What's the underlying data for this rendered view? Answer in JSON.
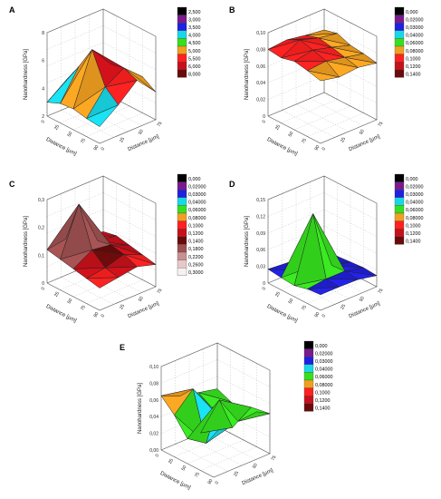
{
  "chart_data": [
    {
      "type": "surface",
      "panel": "A",
      "zlabel": "Nanohardness [GPa]",
      "xlabel": "Distance [µm]",
      "ylabel": "Distance [µm]",
      "zlim": [
        2,
        8
      ],
      "zticks": [
        "2",
        "4",
        "6",
        "8"
      ],
      "xticks": [
        "0",
        "25",
        "50",
        "75",
        "90"
      ],
      "yticks": [
        "0",
        "25",
        "50",
        "75"
      ],
      "legend": [
        {
          "label": "2,500",
          "color": "#000000"
        },
        {
          "label": "3,000",
          "color": "#7a1a8c"
        },
        {
          "label": "3,500",
          "color": "#2020e0"
        },
        {
          "label": "4,000",
          "color": "#18d8e8"
        },
        {
          "label": "4,500",
          "color": "#36e01e"
        },
        {
          "label": "5,000",
          "color": "#f0a020"
        },
        {
          "label": "5,500",
          "color": "#ff2020"
        },
        {
          "label": "6,000",
          "color": "#c8101a"
        },
        {
          "label": "8,000",
          "color": "#6a0a0a"
        }
      ],
      "z": [
        [
          3.0,
          3.4,
          3.5,
          3.3,
          3.2
        ],
        [
          4.0,
          5.5,
          7.2,
          5.0,
          4.2
        ],
        [
          3.5,
          4.5,
          5.6,
          5.8,
          5.4
        ],
        [
          3.2,
          3.8,
          4.4,
          4.6,
          4.0
        ]
      ]
    },
    {
      "type": "surface",
      "panel": "B",
      "zlabel": "Nanohardness [GPa]",
      "xlabel": "Distance [µm]",
      "ylabel": "Distance [µm]",
      "zlim": [
        0,
        0.1
      ],
      "zticks": [
        "0",
        "0,02",
        "0,04",
        "0,06",
        "0,08",
        "0,10"
      ],
      "xticks": [
        "0",
        "25",
        "50",
        "75",
        "90"
      ],
      "yticks": [
        "0",
        "25",
        "50",
        "75"
      ],
      "legend": [
        {
          "label": "0,000",
          "color": "#000000"
        },
        {
          "label": "0,02000",
          "color": "#7a1a8c"
        },
        {
          "label": "0,03000",
          "color": "#2020e0"
        },
        {
          "label": "0,04000",
          "color": "#18d8e8"
        },
        {
          "label": "0,06000",
          "color": "#36e01e"
        },
        {
          "label": "0,08000",
          "color": "#f0a020"
        },
        {
          "label": "0,1000",
          "color": "#ff2020"
        },
        {
          "label": "0,1200",
          "color": "#c8101a"
        },
        {
          "label": "0,1400",
          "color": "#6a0a0a"
        }
      ],
      "z": [
        [
          0.08,
          0.078,
          0.082,
          0.079,
          0.075
        ],
        [
          0.082,
          0.09,
          0.086,
          0.081,
          0.07
        ],
        [
          0.078,
          0.083,
          0.08,
          0.076,
          0.072
        ],
        [
          0.075,
          0.079,
          0.073,
          0.071,
          0.068
        ]
      ]
    },
    {
      "type": "surface",
      "panel": "C",
      "zlabel": "Nanohardness [GPa]",
      "xlabel": "Distance [µm]",
      "ylabel": "Distance [µm]",
      "zlim": [
        0,
        0.3
      ],
      "zticks": [
        "0",
        "0,1",
        "0,2",
        "0,3"
      ],
      "xticks": [
        "0",
        "25",
        "50",
        "75",
        "90"
      ],
      "yticks": [
        "0",
        "25",
        "50",
        "75"
      ],
      "legend": [
        {
          "label": "0,000",
          "color": "#000000"
        },
        {
          "label": "0,02000",
          "color": "#7a1a8c"
        },
        {
          "label": "0,03000",
          "color": "#2020e0"
        },
        {
          "label": "0,04000",
          "color": "#18d8e8"
        },
        {
          "label": "0,06000",
          "color": "#36e01e"
        },
        {
          "label": "0,08000",
          "color": "#f0a020"
        },
        {
          "label": "0,1000",
          "color": "#ff2020"
        },
        {
          "label": "0,1200",
          "color": "#c8101a"
        },
        {
          "label": "0,1400",
          "color": "#6a0a0a"
        },
        {
          "label": "0,1800",
          "color": "#a05050"
        },
        {
          "label": "0,2200",
          "color": "#c89090"
        },
        {
          "label": "0,2600",
          "color": "#e6c8c8"
        },
        {
          "label": "0,3000",
          "color": "#f6f0f0"
        }
      ],
      "z": [
        [
          0.12,
          0.11,
          0.1,
          0.09,
          0.08
        ],
        [
          0.13,
          0.28,
          0.14,
          0.1,
          0.09
        ],
        [
          0.11,
          0.12,
          0.13,
          0.12,
          0.1
        ],
        [
          0.1,
          0.11,
          0.1,
          0.09,
          0.08
        ]
      ]
    },
    {
      "type": "surface",
      "panel": "D",
      "zlabel": "Nanohardness [GPa]",
      "xlabel": "Distance [µm]",
      "ylabel": "Distance [µm]",
      "zlim": [
        0,
        0.15
      ],
      "zticks": [
        "0",
        "0,03",
        "0,06",
        "0,09",
        "0,12",
        "0,15"
      ],
      "xticks": [
        "0",
        "25",
        "50",
        "75",
        "90"
      ],
      "yticks": [
        "0",
        "25",
        "50",
        "75"
      ],
      "legend": [
        {
          "label": "0,000",
          "color": "#000000"
        },
        {
          "label": "0,02000",
          "color": "#7a1a8c"
        },
        {
          "label": "0,03000",
          "color": "#2020e0"
        },
        {
          "label": "0,04000",
          "color": "#18d8e8"
        },
        {
          "label": "0,06000",
          "color": "#36e01e"
        },
        {
          "label": "0,08000",
          "color": "#f0a020"
        },
        {
          "label": "0,1000",
          "color": "#ff2020"
        },
        {
          "label": "0,1200",
          "color": "#c8101a"
        },
        {
          "label": "0,1400",
          "color": "#6a0a0a"
        }
      ],
      "z": [
        [
          0.025,
          0.022,
          0.02,
          0.026,
          0.028
        ],
        [
          0.022,
          0.02,
          0.135,
          0.03,
          0.028
        ],
        [
          0.018,
          0.02,
          0.028,
          0.03,
          0.027
        ],
        [
          0.015,
          0.018,
          0.02,
          0.022,
          0.02
        ]
      ]
    },
    {
      "type": "surface",
      "panel": "E",
      "zlabel": "Nanohardness [GPa]",
      "xlabel": "Distance [µm]",
      "ylabel": "Distance [µm]",
      "zlim": [
        0,
        0.1
      ],
      "zticks": [
        "0,00",
        "0,02",
        "0,04",
        "0,06",
        "0,08",
        "0,10"
      ],
      "xticks": [
        "0",
        "25",
        "50",
        "75",
        "90"
      ],
      "yticks": [
        "0",
        "25",
        "50",
        "75"
      ],
      "legend": [
        {
          "label": "0,000",
          "color": "#000000"
        },
        {
          "label": "0,02000",
          "color": "#7a1a8c"
        },
        {
          "label": "0,03000",
          "color": "#2020e0"
        },
        {
          "label": "0,04000",
          "color": "#18d8e8"
        },
        {
          "label": "0,06000",
          "color": "#36e01e"
        },
        {
          "label": "0,08000",
          "color": "#f0a020"
        },
        {
          "label": "0,1000",
          "color": "#ff2020"
        },
        {
          "label": "0,1200",
          "color": "#c8101a"
        },
        {
          "label": "0,1400",
          "color": "#6a0a0a"
        }
      ],
      "z": [
        [
          0.065,
          0.05,
          0.03,
          0.045,
          0.06
        ],
        [
          0.055,
          0.072,
          0.015,
          0.075,
          0.05
        ],
        [
          0.05,
          0.04,
          0.03,
          0.04,
          0.065
        ],
        [
          0.045,
          0.038,
          0.035,
          0.042,
          0.048
        ]
      ]
    }
  ]
}
